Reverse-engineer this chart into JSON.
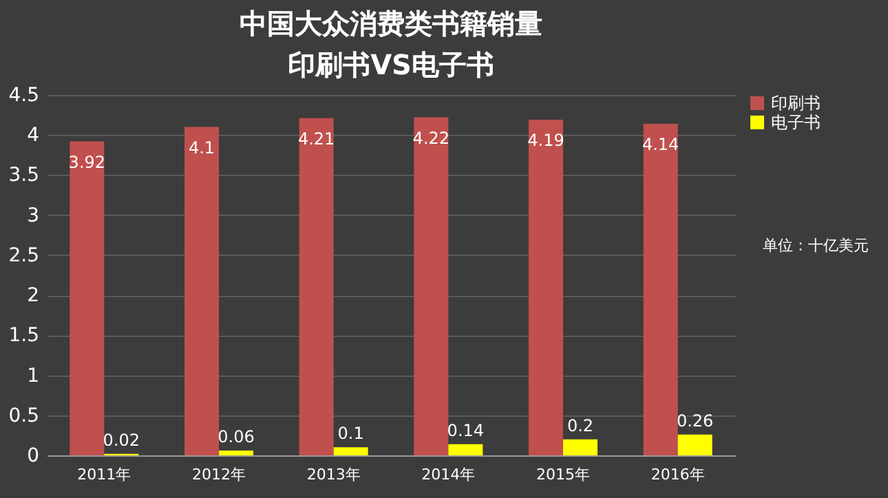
{
  "chart_data": {
    "type": "bar",
    "title": "中国大众消费类书籍销量",
    "subtitle": "印刷书VS电子书",
    "categories": [
      "2011年",
      "2012年",
      "2013年",
      "2014年",
      "2015年",
      "2016年"
    ],
    "series": [
      {
        "name": "印刷书",
        "color": "#c0504d",
        "values": [
          3.92,
          4.1,
          4.21,
          4.22,
          4.19,
          4.14
        ]
      },
      {
        "name": "电子书",
        "color": "#ffff00",
        "values": [
          0.02,
          0.06,
          0.1,
          0.14,
          0.2,
          0.26
        ]
      }
    ],
    "ylim": [
      0,
      4.5
    ],
    "yticks": [
      0,
      0.5,
      1,
      1.5,
      2,
      2.5,
      3,
      3.5,
      4,
      4.5
    ],
    "grid": "y",
    "legend": "right",
    "data_labels": true,
    "annotations": [
      "单位：十亿美元"
    ]
  }
}
